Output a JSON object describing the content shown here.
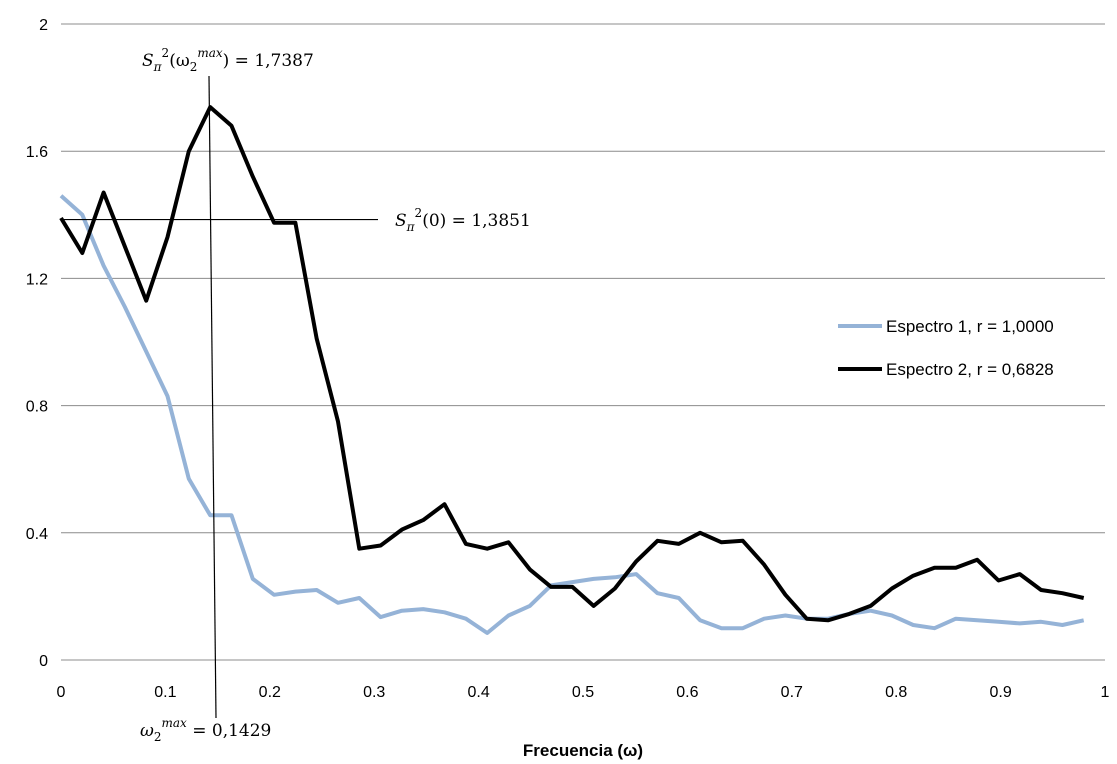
{
  "chart_data": {
    "type": "line",
    "title": "",
    "xlabel": "Frecuencia (ω)",
    "ylabel": "",
    "xlim": [
      0,
      1
    ],
    "ylim": [
      0,
      2
    ],
    "xticks": [
      "0",
      "0.1",
      "0.2",
      "0.3",
      "0.4",
      "0.5",
      "0.6",
      "0.7",
      "0.8",
      "0.9",
      "1"
    ],
    "yticks": [
      "0",
      "0.4",
      "0.8",
      "1.2",
      "1.6",
      "2"
    ],
    "grid": "horizontal",
    "legend_position": "right",
    "x": [
      0,
      0.0204,
      0.0408,
      0.0612,
      0.0816,
      0.102,
      0.1224,
      0.1429,
      0.1633,
      0.1837,
      0.2041,
      0.2245,
      0.2449,
      0.2653,
      0.2857,
      0.3061,
      0.3265,
      0.3469,
      0.3673,
      0.3878,
      0.4082,
      0.4286,
      0.449,
      0.4694,
      0.4898,
      0.5102,
      0.5306,
      0.551,
      0.5714,
      0.5918,
      0.6122,
      0.6327,
      0.6531,
      0.6735,
      0.6939,
      0.7143,
      0.7347,
      0.7551,
      0.7755,
      0.7959,
      0.8163,
      0.8367,
      0.8571,
      0.8776,
      0.898,
      0.9184,
      0.9388,
      0.9592,
      0.9796
    ],
    "series": [
      {
        "name": "Espectro 1, r = 1,0000",
        "color": "#95b3d7",
        "values": [
          1.46,
          1.4,
          1.24,
          1.11,
          0.97,
          0.83,
          0.57,
          0.455,
          0.455,
          0.255,
          0.205,
          0.215,
          0.22,
          0.18,
          0.195,
          0.135,
          0.155,
          0.16,
          0.15,
          0.13,
          0.085,
          0.14,
          0.17,
          0.235,
          0.245,
          0.255,
          0.26,
          0.27,
          0.21,
          0.195,
          0.125,
          0.1,
          0.1,
          0.13,
          0.14,
          0.13,
          0.13,
          0.145,
          0.155,
          0.14,
          0.11,
          0.1,
          0.13,
          0.125,
          0.12,
          0.115,
          0.12,
          0.11,
          0.125
        ]
      },
      {
        "name": "Espectro 2, r = 0,6828",
        "color": "#000000",
        "values": [
          1.39,
          1.28,
          1.47,
          1.3,
          1.13,
          1.33,
          1.6,
          1.7387,
          1.68,
          1.52,
          1.375,
          1.375,
          1.01,
          0.75,
          0.35,
          0.36,
          0.41,
          0.44,
          0.49,
          0.365,
          0.35,
          0.37,
          0.285,
          0.23,
          0.23,
          0.17,
          0.225,
          0.31,
          0.375,
          0.365,
          0.4,
          0.37,
          0.375,
          0.3,
          0.205,
          0.13,
          0.125,
          0.145,
          0.17,
          0.225,
          0.265,
          0.29,
          0.29,
          0.315,
          0.25,
          0.27,
          0.22,
          0.21,
          0.195
        ]
      }
    ],
    "annotations": [
      {
        "id": "peak",
        "x": 0.1429,
        "y": 1.7387,
        "parts": [
          "S",
          "π",
          "2",
          "(ω",
          "2",
          "max",
          ") = 1,7387"
        ]
      },
      {
        "id": "level",
        "y": 1.3851,
        "parts": [
          "S",
          "π",
          "2",
          "(0) = 1,3851"
        ]
      },
      {
        "id": "freq",
        "x": 0.1429,
        "parts": [
          "ω",
          "2",
          "max",
          " = 0,1429"
        ]
      }
    ]
  }
}
